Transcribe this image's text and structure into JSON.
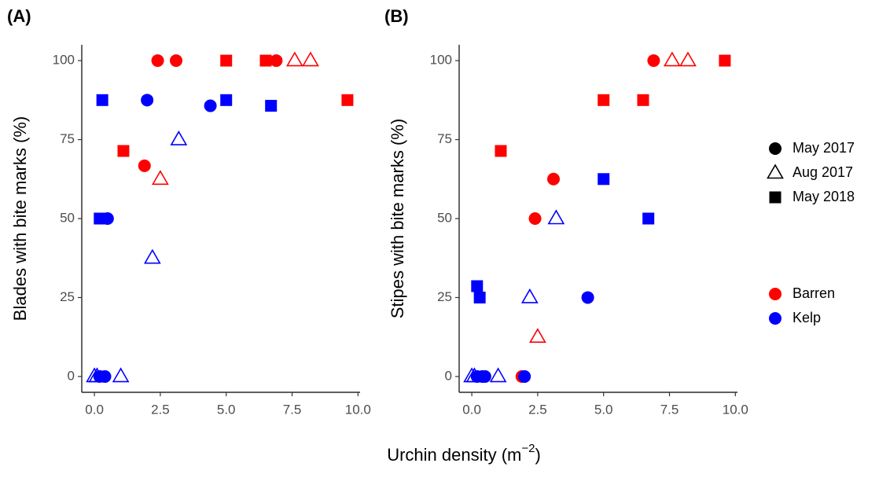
{
  "chart_data": [
    {
      "type": "scatter",
      "title": "(A)",
      "ylabel": "Blades with bite marks (%)",
      "xlim": [
        -0.48,
        10.08
      ],
      "ylim": [
        -5,
        105
      ],
      "xticks": [
        {
          "value": 0,
          "label": "0.0"
        },
        {
          "value": 2.5,
          "label": "2.5"
        },
        {
          "value": 5,
          "label": "5.0"
        },
        {
          "value": 7.5,
          "label": "7.5"
        },
        {
          "value": 10,
          "label": "10.0"
        }
      ],
      "yticks": [
        0,
        25,
        50,
        75,
        100
      ],
      "series": [
        {
          "color": "#ff0000",
          "marker": "circle",
          "x": [
            2.4,
            3.1,
            6.9,
            1.9
          ],
          "values": [
            100,
            100,
            100,
            66.7
          ]
        },
        {
          "color": "#ff0000",
          "marker": "triangle-open",
          "x": [
            2.5,
            7.6,
            8.2
          ],
          "values": [
            62.5,
            100,
            100
          ]
        },
        {
          "color": "#ff0000",
          "marker": "square",
          "x": [
            1.1,
            5.0,
            6.5,
            9.6
          ],
          "values": [
            71.4,
            100,
            100,
            87.5
          ]
        },
        {
          "color": "#0000ff",
          "marker": "circle",
          "x": [
            2.0,
            4.4,
            0.5,
            0.2,
            0.4
          ],
          "values": [
            87.5,
            85.7,
            50,
            0,
            0
          ]
        },
        {
          "color": "#0000ff",
          "marker": "triangle-open",
          "x": [
            0,
            0.1,
            1.0,
            2.2,
            3.2
          ],
          "values": [
            0,
            0,
            0,
            37.5,
            75
          ]
        },
        {
          "color": "#0000ff",
          "marker": "square",
          "x": [
            0.3,
            0.2,
            5.0,
            6.7
          ],
          "values": [
            87.5,
            50,
            87.5,
            85.7
          ]
        }
      ]
    },
    {
      "type": "scatter",
      "title": "(B)",
      "ylabel": "Stipes with bite marks (%)",
      "xlim": [
        -0.48,
        10.08
      ],
      "ylim": [
        -5,
        105
      ],
      "xticks": [
        {
          "value": 0,
          "label": "0.0"
        },
        {
          "value": 2.5,
          "label": "2.5"
        },
        {
          "value": 5,
          "label": "5.0"
        },
        {
          "value": 7.5,
          "label": "7.5"
        },
        {
          "value": 10,
          "label": "10.0"
        }
      ],
      "yticks": [
        0,
        25,
        50,
        75,
        100
      ],
      "series": [
        {
          "color": "#ff0000",
          "marker": "circle",
          "x": [
            6.9,
            3.1,
            2.4,
            1.9
          ],
          "values": [
            100,
            62.5,
            50,
            0
          ]
        },
        {
          "color": "#ff0000",
          "marker": "triangle-open",
          "x": [
            7.6,
            8.2,
            2.5
          ],
          "values": [
            100,
            100,
            12.5
          ]
        },
        {
          "color": "#ff0000",
          "marker": "square",
          "x": [
            9.6,
            5.0,
            6.5,
            1.1
          ],
          "values": [
            100,
            87.5,
            87.5,
            71.4
          ]
        },
        {
          "color": "#0000ff",
          "marker": "circle",
          "x": [
            4.4,
            2.0,
            0.2,
            0.4,
            0.5
          ],
          "values": [
            25,
            0,
            0,
            0,
            0
          ]
        },
        {
          "color": "#0000ff",
          "marker": "triangle-open",
          "x": [
            3.2,
            2.2,
            1.0,
            0,
            0.1
          ],
          "values": [
            50,
            25,
            0,
            0,
            0
          ]
        },
        {
          "color": "#0000ff",
          "marker": "square",
          "x": [
            5.0,
            6.7,
            0.2,
            0.3
          ],
          "values": [
            62.5,
            50,
            28.6,
            25
          ]
        }
      ]
    }
  ],
  "xlabel": {
    "text": "Urchin density (m",
    "sup": "−2",
    "close": ")"
  },
  "shape_legend": [
    {
      "label": "May 2017",
      "marker": "circle"
    },
    {
      "label": "Aug 2017",
      "marker": "triangle-open"
    },
    {
      "label": "May 2018",
      "marker": "square"
    }
  ],
  "color_legend": [
    {
      "label": "Barren",
      "color": "#ff0000"
    },
    {
      "label": "Kelp",
      "color": "#0000ff"
    }
  ]
}
